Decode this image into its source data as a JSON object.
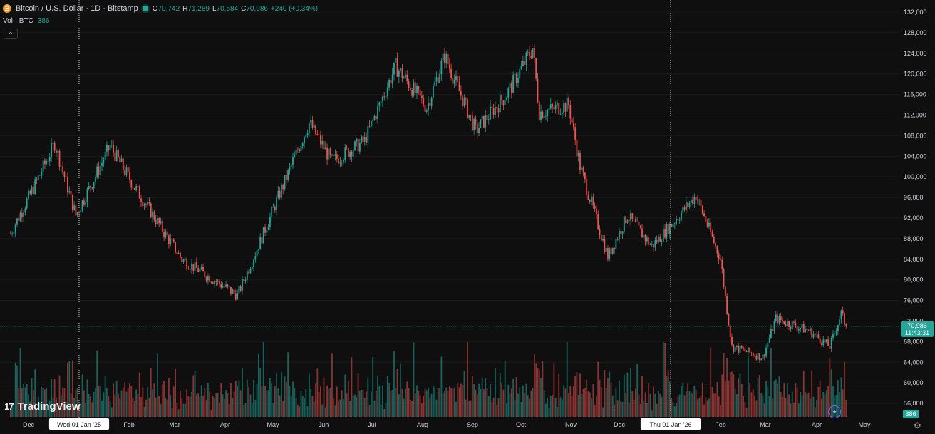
{
  "header": {
    "coin_symbol": "₿",
    "title": "Bitcoin / U.S. Dollar · 1D · Bitstamp",
    "ohlc": {
      "o_label": "O",
      "o_value": "70,742",
      "h_label": "H",
      "h_value": "71,289",
      "l_label": "L",
      "l_value": "70,584",
      "c_label": "C",
      "c_value": "70,986",
      "change": "+240 (+0.34%)"
    }
  },
  "volume_legend": {
    "label": "Vol · BTC",
    "value": "386"
  },
  "collapse_glyph": "^",
  "branding": {
    "logo_mark": "17",
    "name": "TradingView"
  },
  "price_tag": {
    "price": "70,986",
    "countdown": "11:43:31"
  },
  "volume_tag": "386",
  "colors": {
    "up": "#26a69a",
    "down": "#ef5350",
    "background": "#0f0f0f",
    "axis_text": "#d1d4dc",
    "grid": "#1a1a1a",
    "price_line": "#26a69a"
  },
  "icons": {
    "settings": "gear-icon",
    "assistant": "sparkle-icon",
    "coin": "bitcoin-icon"
  },
  "chart_data": {
    "type": "candlestick",
    "title": "Bitcoin / U.S. Dollar · 1D · Bitstamp",
    "x_axis_labels": [
      "Dec",
      "Wed 01 Jan '25",
      "Feb",
      "Mar",
      "Apr",
      "May",
      "Jun",
      "Jul",
      "Aug",
      "Sep",
      "Oct",
      "Nov",
      "Dec",
      "Thu 01 Jan '26",
      "Feb",
      "Mar",
      "Apr",
      "May"
    ],
    "highlighted_dates": [
      "Wed 01 Jan '25",
      "Thu 01 Jan '26"
    ],
    "y_ticks": [
      132000,
      128000,
      124000,
      120000,
      116000,
      112000,
      108000,
      104000,
      100000,
      96000,
      92000,
      88000,
      84000,
      80000,
      76000,
      72000,
      68000,
      64000,
      60000,
      56000
    ],
    "ylim": [
      54000,
      132500
    ],
    "last_close": 70986,
    "close_anchors": [
      {
        "date": "2024-11-20",
        "close": 89000
      },
      {
        "date": "2024-12-05",
        "close": 98500
      },
      {
        "date": "2024-12-17",
        "close": 106500
      },
      {
        "date": "2024-12-30",
        "close": 92500
      },
      {
        "date": "2025-01-20",
        "close": 106000
      },
      {
        "date": "2025-02-03",
        "close": 98500
      },
      {
        "date": "2025-03-05",
        "close": 84000
      },
      {
        "date": "2025-04-08",
        "close": 77000
      },
      {
        "date": "2025-04-22",
        "close": 87500
      },
      {
        "date": "2025-05-12",
        "close": 103000
      },
      {
        "date": "2025-05-22",
        "close": 110500
      },
      {
        "date": "2025-06-05",
        "close": 103000
      },
      {
        "date": "2025-06-25",
        "close": 107000
      },
      {
        "date": "2025-07-14",
        "close": 121500
      },
      {
        "date": "2025-08-02",
        "close": 113500
      },
      {
        "date": "2025-08-13",
        "close": 123500
      },
      {
        "date": "2025-09-01",
        "close": 109000
      },
      {
        "date": "2025-09-20",
        "close": 116000
      },
      {
        "date": "2025-10-06",
        "close": 125000
      },
      {
        "date": "2025-10-10",
        "close": 112500
      },
      {
        "date": "2025-10-28",
        "close": 114000
      },
      {
        "date": "2025-11-04",
        "close": 102000
      },
      {
        "date": "2025-11-21",
        "close": 84500
      },
      {
        "date": "2025-12-03",
        "close": 92500
      },
      {
        "date": "2025-12-18",
        "close": 86500
      },
      {
        "date": "2026-01-05",
        "close": 93000
      },
      {
        "date": "2026-01-14",
        "close": 96500
      },
      {
        "date": "2026-01-29",
        "close": 84000
      },
      {
        "date": "2026-02-05",
        "close": 67000
      },
      {
        "date": "2026-02-24",
        "close": 65000
      },
      {
        "date": "2026-03-04",
        "close": 72500
      },
      {
        "date": "2026-03-25",
        "close": 70000
      },
      {
        "date": "2026-04-06",
        "close": 67000
      },
      {
        "date": "2026-04-13",
        "close": 73500
      },
      {
        "date": "2026-04-16",
        "close": 70986
      }
    ],
    "volume": {
      "series_name": "Vol · BTC",
      "last_value": 386
    }
  }
}
